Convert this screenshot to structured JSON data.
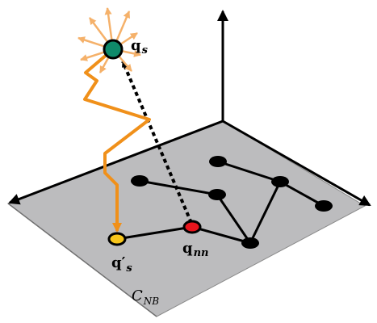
{
  "labels": {
    "q_s_main": "q",
    "q_s_sub": "s",
    "q_nn_main": "q",
    "q_nn_sub": "nn",
    "q_prime_main": "q′",
    "q_prime_sub": "s",
    "c_nb_main": "C",
    "c_nb_sub": "NB"
  },
  "colors": {
    "plane": "#b9b9bb",
    "plane_border": "#7f7f7f",
    "axis": "#000000",
    "graph": "#000000",
    "path": "#f0901a",
    "expand_arrows": "#f5b16a",
    "q_s_node": "#0f8a6a",
    "q_nn_node": "#e8141c",
    "q_prime_node": "#f7c51a",
    "dashed_arrow": "#000000"
  }
}
